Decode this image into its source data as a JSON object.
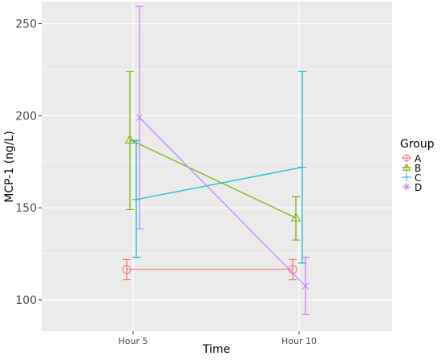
{
  "chart_data": {
    "type": "line",
    "xlabel": "Time",
    "ylabel": "MCP-1 (ng/L)",
    "categories": [
      "Hour 5",
      "Hour 10"
    ],
    "ylim": [
      83,
      262
    ],
    "yticks": [
      100,
      150,
      200,
      250
    ],
    "grid": true,
    "legend": {
      "title": "Group",
      "position": "right"
    },
    "series": [
      {
        "name": "A",
        "color": "#F8766D",
        "marker": "circle",
        "values": [
          116.5,
          116.5
        ],
        "lower": [
          111,
          111
        ],
        "upper": [
          122,
          122
        ]
      },
      {
        "name": "B",
        "color": "#7CAE00",
        "marker": "triangle",
        "values": [
          187,
          144.5
        ],
        "lower": [
          149,
          132.5
        ],
        "upper": [
          224,
          156
        ]
      },
      {
        "name": "C",
        "color": "#00BFC4",
        "marker": "plus",
        "values": [
          154.5,
          172
        ],
        "lower": [
          123,
          120
        ],
        "upper": [
          186.5,
          224
        ]
      },
      {
        "name": "D",
        "color": "#C77CFF",
        "marker": "cross",
        "values": [
          199,
          107.5
        ],
        "lower": [
          138.5,
          92
        ],
        "upper": [
          259.5,
          123
        ]
      }
    ]
  }
}
